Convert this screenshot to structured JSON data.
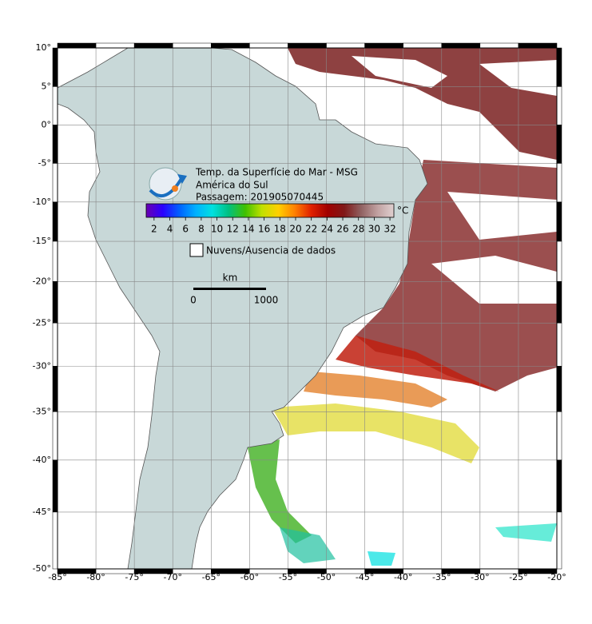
{
  "map": {
    "title": [
      "Temp. da Superfície do Mar - MSG",
      "América do Sul",
      "Passagem: 201905070445"
    ],
    "xlim": [
      -85,
      -20
    ],
    "ylim": [
      -50,
      10
    ],
    "lon_ticks": [
      {
        "value": -85,
        "label": "-85°"
      },
      {
        "value": -80,
        "label": "-80°"
      },
      {
        "value": -75,
        "label": "-75°"
      },
      {
        "value": -70,
        "label": "-70°"
      },
      {
        "value": -65,
        "label": "-65°"
      },
      {
        "value": -60,
        "label": "-60°"
      },
      {
        "value": -55,
        "label": "-55°"
      },
      {
        "value": -50,
        "label": "-50°"
      },
      {
        "value": -45,
        "label": "-45°"
      },
      {
        "value": -40,
        "label": "-40°"
      },
      {
        "value": -35,
        "label": "-35°"
      },
      {
        "value": -30,
        "label": "-30°"
      },
      {
        "value": -25,
        "label": "-25°"
      },
      {
        "value": -20,
        "label": "-20°"
      }
    ],
    "lat_ticks": [
      {
        "value": 10,
        "label": "10°"
      },
      {
        "value": 5,
        "label": "5°"
      },
      {
        "value": 0,
        "label": "0°"
      },
      {
        "value": -5,
        "label": "-5°"
      },
      {
        "value": -10,
        "label": "-10°"
      },
      {
        "value": -15,
        "label": "-15°"
      },
      {
        "value": -20,
        "label": "-20°"
      },
      {
        "value": -25,
        "label": "-25°"
      },
      {
        "value": -30,
        "label": "-30°"
      },
      {
        "value": -35,
        "label": "-35°"
      },
      {
        "value": -40,
        "label": "-40°"
      },
      {
        "value": -45,
        "label": "-45°"
      },
      {
        "value": -50,
        "label": "-50°"
      }
    ],
    "colorbar": {
      "lim": [
        1,
        32.5
      ],
      "ticks": [
        2,
        4,
        6,
        8,
        10,
        12,
        14,
        16,
        18,
        20,
        22,
        24,
        26,
        28,
        30,
        32
      ],
      "unit": "°C",
      "colors": [
        "#6a00b0",
        "#2a00ff",
        "#0060ff",
        "#00b0ff",
        "#00e0e0",
        "#00c080",
        "#40c000",
        "#c0e000",
        "#ffd000",
        "#ff8000",
        "#e02000",
        "#a00000",
        "#801818",
        "#906060",
        "#c0a0a0",
        "#e0d0d0"
      ]
    },
    "legend": "Nuvens/Ausencia de dados",
    "scale": {
      "unit": "km",
      "ticks": [
        0,
        1000
      ]
    }
  }
}
